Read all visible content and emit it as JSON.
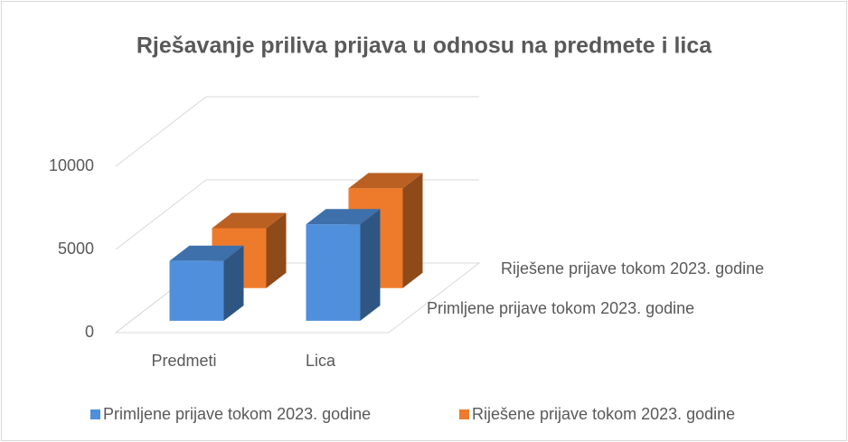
{
  "chart_data": {
    "type": "bar",
    "title": "Rješavanje priliva prijava u odnosu na predmete i lica",
    "categories": [
      "Predmeti",
      "Lica"
    ],
    "series": [
      {
        "name": "Primljene prijave tokom 2023. godine",
        "color": "#4f8fdb",
        "values": [
          3600,
          5800
        ]
      },
      {
        "name": "Riješene prijave tokom 2023. godine",
        "color": "#ee7b2b",
        "values": [
          3600,
          6000
        ]
      }
    ],
    "ylim": [
      0,
      10000
    ],
    "yticks": [
      0,
      5000,
      10000
    ],
    "grid": true,
    "legend": "bottom"
  }
}
